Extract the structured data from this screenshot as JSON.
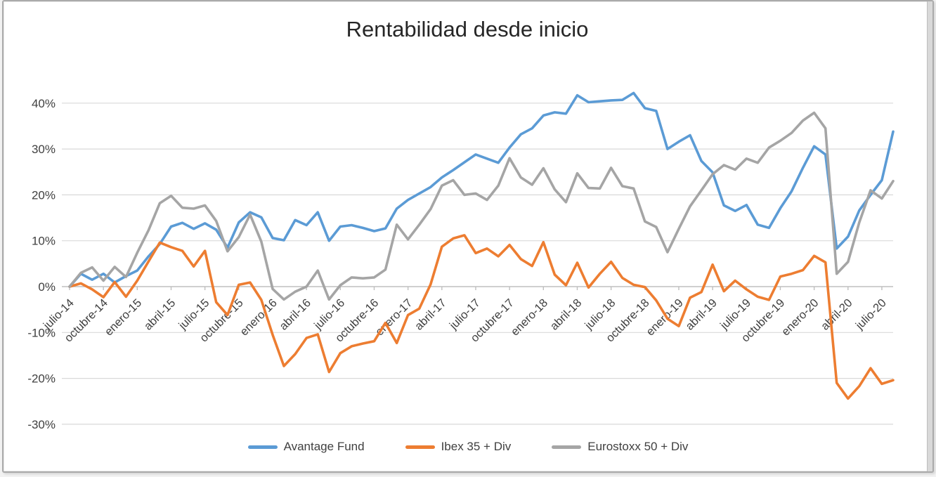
{
  "window": {
    "background": "#ffffff",
    "frame_border_color": "#aaaaaa"
  },
  "chart_data": {
    "type": "line",
    "title": "Rentabilidad desde inicio",
    "title_color": "#262626",
    "axis_text_color": "#404040",
    "gridline_color": "#d9d9d9",
    "zero_axis_color": "#bfbfbf",
    "grid": "horizontal",
    "legend_position": "bottom",
    "ylim": [
      -30,
      40
    ],
    "y_tick_labels": [
      "40%",
      "30%",
      "20%",
      "10%",
      "0%",
      "-10%",
      "-20%",
      "-30%"
    ],
    "y_tick_values": [
      40,
      30,
      20,
      10,
      0,
      -10,
      -20,
      -30
    ],
    "x_tick_labels": [
      "julio-14",
      "octubre-14",
      "enero-15",
      "abril-15",
      "julio-15",
      "octubre-15",
      "enero-16",
      "abril-16",
      "julio-16",
      "octubre-16",
      "enero-17",
      "abril-17",
      "julio-17",
      "octubre-17",
      "enero-18",
      "abril-18",
      "julio-18",
      "octubre-18",
      "enero-19",
      "abril-19",
      "julio-19",
      "octubre-19",
      "enero-20",
      "abril-20",
      "julio-20"
    ],
    "points_per_tick": 3,
    "series": [
      {
        "name": "Avantage Fund",
        "color": "#5B9BD5",
        "values": [
          0,
          2.8,
          1.5,
          2.8,
          0.9,
          2.3,
          3.5,
          6.6,
          9.3,
          13.1,
          13.9,
          12.6,
          13.8,
          12.4,
          8.5,
          14.0,
          16.2,
          15.1,
          10.6,
          10.1,
          14.5,
          13.4,
          16.2,
          10.0,
          13.1,
          13.4,
          12.8,
          12.1,
          12.7,
          17.0,
          18.9,
          20.3,
          21.7,
          23.8,
          25.4,
          27.1,
          28.8,
          27.9,
          27.0,
          30.3,
          33.2,
          34.5,
          37.3,
          38.0,
          37.7,
          41.7,
          40.2,
          40.4,
          40.6,
          40.7,
          42.2,
          38.9,
          38.3,
          30.0,
          31.6,
          33.0,
          27.4,
          24.9,
          17.7,
          16.5,
          17.8,
          13.5,
          12.8,
          17.1,
          20.8,
          25.9,
          30.6,
          28.8,
          8.3,
          10.9,
          16.6,
          20.0,
          23.2,
          33.8
        ]
      },
      {
        "name": "Ibex 35 + Div",
        "color": "#ED7D31",
        "values": [
          0,
          0.7,
          -0.6,
          -2.3,
          1.0,
          -2.2,
          1.3,
          5.5,
          9.6,
          8.6,
          7.8,
          4.4,
          7.8,
          -3.4,
          -6.2,
          0.4,
          0.9,
          -2.9,
          -10.5,
          -17.3,
          -14.7,
          -11.2,
          -10.4,
          -18.6,
          -14.5,
          -13.0,
          -12.4,
          -11.9,
          -7.9,
          -12.3,
          -6.2,
          -4.8,
          0.5,
          8.7,
          10.5,
          11.2,
          7.3,
          8.3,
          6.6,
          9.1,
          6.0,
          4.5,
          9.7,
          2.6,
          0.3,
          5.2,
          -0.2,
          2.8,
          5.4,
          1.9,
          0.4,
          -0.1,
          -3.0,
          -7.0,
          -8.6,
          -2.4,
          -1.2,
          4.8,
          -1.0,
          1.3,
          -0.6,
          -2.2,
          -2.9,
          2.2,
          2.8,
          3.6,
          6.7,
          5.3,
          -21.0,
          -24.4,
          -21.7,
          -17.8,
          -21.2,
          -20.4
        ]
      },
      {
        "name": "Eurostoxx 50 + Div",
        "color": "#A5A5A5",
        "values": [
          0,
          3.0,
          4.2,
          1.3,
          4.3,
          2.1,
          7.4,
          12.3,
          18.2,
          19.8,
          17.2,
          17.0,
          17.7,
          14.3,
          7.7,
          10.8,
          15.7,
          9.8,
          -0.5,
          -2.8,
          -1.1,
          0.0,
          3.5,
          -2.8,
          0.3,
          2.0,
          1.8,
          2.0,
          3.7,
          13.5,
          10.3,
          13.5,
          16.9,
          22.0,
          23.2,
          20.0,
          20.3,
          18.9,
          22.0,
          28.0,
          23.8,
          22.2,
          25.8,
          21.2,
          18.4,
          24.7,
          21.5,
          21.4,
          25.9,
          21.9,
          21.4,
          14.2,
          13.0,
          7.5,
          12.6,
          17.5,
          21.0,
          24.5,
          26.5,
          25.5,
          27.9,
          27.0,
          30.3,
          31.8,
          33.5,
          36.2,
          37.9,
          34.5,
          2.8,
          5.4,
          14.0,
          21.0,
          19.2,
          23.0
        ]
      }
    ]
  }
}
